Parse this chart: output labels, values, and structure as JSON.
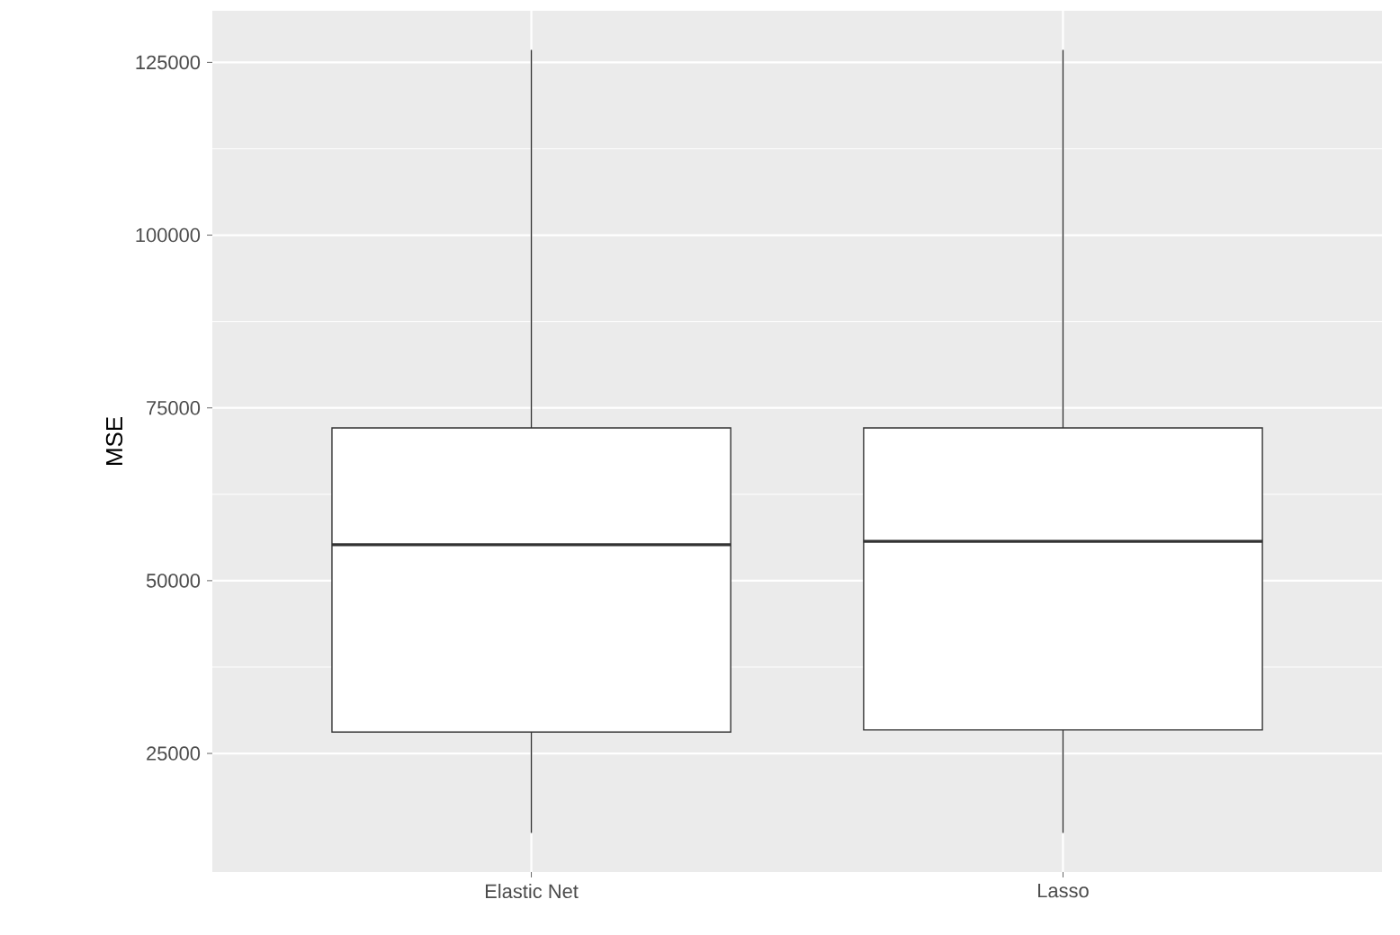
{
  "chart_data": {
    "type": "box",
    "ylabel": "MSE",
    "categories": [
      "Elastic Net",
      "Lasso"
    ],
    "boxes": [
      {
        "low": 13500,
        "q1": 28100,
        "median": 55200,
        "q3": 72100,
        "high": 126800
      },
      {
        "low": 13500,
        "q1": 28400,
        "median": 55700,
        "q3": 72100,
        "high": 126800
      }
    ],
    "ylim": [
      7835,
      132465
    ],
    "yticks": [
      25000,
      50000,
      75000,
      100000,
      125000
    ],
    "grid": true
  }
}
